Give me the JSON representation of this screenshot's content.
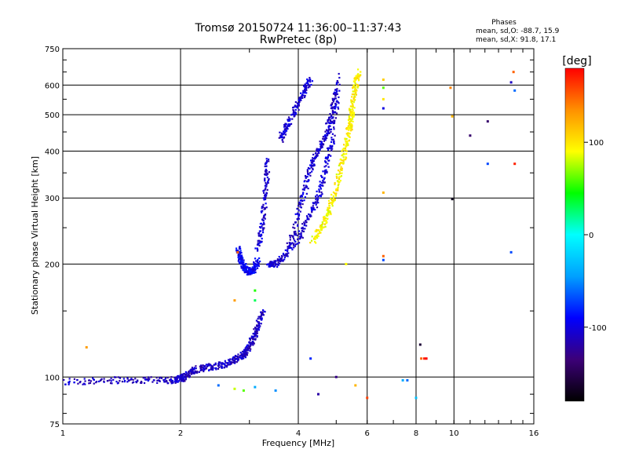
{
  "chart_data": {
    "type": "scatter",
    "title": "Tromsø 20150724 11:36:00–11:37:43",
    "subtitle": "RwPretec (8p)",
    "xlabel": "Frequency [MHz]",
    "ylabel": "Stationary phase Virtual Height [km]",
    "x_scale": "log",
    "y_scale": "log",
    "xlim": [
      1,
      16
    ],
    "ylim": [
      75,
      750
    ],
    "x_ticks": [
      "1",
      "2",
      "4",
      "6",
      "8",
      "10",
      "16"
    ],
    "y_ticks": [
      "75",
      "100",
      "200",
      "300",
      "400",
      "500",
      "600",
      "750"
    ],
    "grid": true,
    "stats": {
      "title": "Phases",
      "line1": "mean, sd,O: -88.7, 15.9",
      "line2": "mean, sd,X:  91.8, 17.1"
    },
    "colorbar": {
      "label": "[deg]",
      "range": [
        -180,
        180
      ],
      "ticks": [
        "100",
        "0",
        "-100"
      ],
      "colors": [
        "#000000",
        "#3c0078",
        "#0000ff",
        "#00a0ff",
        "#00ffff",
        "#00ff00",
        "#ffff00",
        "#ff9000",
        "#ff0000"
      ]
    },
    "traces": [
      {
        "segments": [
          {
            "x": [
              1.0,
              1.3,
              1.6,
              1.9,
              2.0,
              2.05
            ],
            "y": [
              97,
              98,
              98,
              98,
              99,
              100
            ]
          },
          {
            "x": [
              2.05,
              2.15,
              2.3,
              2.5,
              2.7,
              2.85
            ],
            "y": [
              100,
              104,
              106,
              107,
              110,
              113
            ]
          },
          {
            "x": [
              2.85,
              2.95,
              3.05,
              3.15,
              3.25
            ],
            "y": [
              113,
              117,
              125,
              135,
              150
            ]
          }
        ],
        "phase": -110
      },
      {
        "segments": [
          {
            "x": [
              2.8,
              2.85,
              2.92,
              3.0,
              3.08,
              3.15
            ],
            "y": [
              220,
              205,
              195,
              190,
              193,
              205
            ]
          }
        ],
        "phase": -95
      },
      {
        "segments": [
          {
            "x": [
              3.15,
              3.25,
              3.3,
              3.35
            ],
            "y": [
              220,
              260,
              320,
              380
            ]
          },
          {
            "x": [
              3.35,
              3.5,
              3.7,
              3.9,
              4.1,
              4.3
            ],
            "y": [
              200,
              200,
              210,
              240,
              300,
              360
            ]
          },
          {
            "x": [
              3.6,
              3.75,
              3.95,
              4.15,
              4.3
            ],
            "y": [
              430,
              470,
              520,
              580,
              620
            ]
          },
          {
            "x": [
              4.3,
              4.5,
              4.7,
              4.85,
              5.0
            ],
            "y": [
              360,
              400,
              440,
              500,
              580
            ]
          },
          {
            "x": [
              3.9,
              4.2,
              4.5,
              4.7,
              4.9,
              5.1
            ],
            "y": [
              220,
              260,
              300,
              360,
              430,
              640
            ]
          }
        ],
        "phase": -105
      },
      {
        "segments": [
          {
            "x": [
              4.35,
              4.6,
              4.8,
              5.0,
              5.2,
              5.35,
              5.5
            ],
            "y": [
              230,
              250,
              280,
              320,
              380,
              440,
              520
            ]
          },
          {
            "x": [
              5.4,
              5.5,
              5.6,
              5.7
            ],
            "y": [
              450,
              520,
              600,
              650
            ]
          }
        ],
        "phase": 95
      }
    ],
    "scatter_points": [
      {
        "x": 1.15,
        "y": 120,
        "phase": 130
      },
      {
        "x": 2.8,
        "y": 215,
        "phase": 150
      },
      {
        "x": 2.75,
        "y": 160,
        "phase": 130
      },
      {
        "x": 3.1,
        "y": 170,
        "phase": 50
      },
      {
        "x": 3.1,
        "y": 160,
        "phase": 30
      },
      {
        "x": 2.5,
        "y": 95,
        "phase": -60
      },
      {
        "x": 2.75,
        "y": 93,
        "phase": 80
      },
      {
        "x": 2.9,
        "y": 92,
        "phase": 60
      },
      {
        "x": 3.1,
        "y": 94,
        "phase": -40
      },
      {
        "x": 3.5,
        "y": 92,
        "phase": -50
      },
      {
        "x": 4.3,
        "y": 112,
        "phase": -80
      },
      {
        "x": 4.5,
        "y": 90,
        "phase": -120
      },
      {
        "x": 5.0,
        "y": 100,
        "phase": -130
      },
      {
        "x": 5.3,
        "y": 200,
        "phase": 90
      },
      {
        "x": 5.6,
        "y": 95,
        "phase": 120
      },
      {
        "x": 6.0,
        "y": 88,
        "phase": 160
      },
      {
        "x": 6.6,
        "y": 620,
        "phase": 110
      },
      {
        "x": 6.6,
        "y": 590,
        "phase": 60
      },
      {
        "x": 6.6,
        "y": 550,
        "phase": 100
      },
      {
        "x": 6.6,
        "y": 520,
        "phase": -100
      },
      {
        "x": 6.6,
        "y": 310,
        "phase": 120
      },
      {
        "x": 6.6,
        "y": 210,
        "phase": 150
      },
      {
        "x": 6.6,
        "y": 205,
        "phase": -70
      },
      {
        "x": 7.4,
        "y": 98,
        "phase": -40
      },
      {
        "x": 7.6,
        "y": 98,
        "phase": -60
      },
      {
        "x": 8.0,
        "y": 88,
        "phase": -30
      },
      {
        "x": 8.2,
        "y": 122,
        "phase": -160
      },
      {
        "x": 8.25,
        "y": 112,
        "phase": 150
      },
      {
        "x": 8.4,
        "y": 112,
        "phase": 170
      },
      {
        "x": 8.5,
        "y": 112,
        "phase": 180
      },
      {
        "x": 9.9,
        "y": 495,
        "phase": 120
      },
      {
        "x": 9.9,
        "y": 298,
        "phase": -170
      },
      {
        "x": 9.8,
        "y": 590,
        "phase": 140
      },
      {
        "x": 11.0,
        "y": 440,
        "phase": -140
      },
      {
        "x": 12.2,
        "y": 480,
        "phase": -140
      },
      {
        "x": 12.2,
        "y": 370,
        "phase": -70
      },
      {
        "x": 14.2,
        "y": 650,
        "phase": 150
      },
      {
        "x": 14.0,
        "y": 610,
        "phase": -110
      },
      {
        "x": 14.3,
        "y": 580,
        "phase": -60
      },
      {
        "x": 14.3,
        "y": 370,
        "phase": 170
      },
      {
        "x": 14.0,
        "y": 215,
        "phase": -70
      }
    ]
  }
}
